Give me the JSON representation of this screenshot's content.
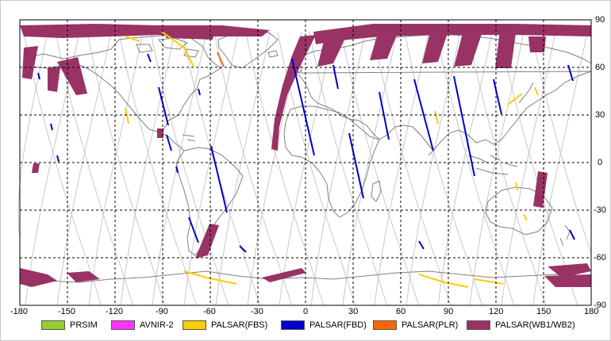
{
  "map": {
    "lon_ticks": [
      "-180",
      "-150",
      "-120",
      "-90",
      "-60",
      "-30",
      "0",
      "30",
      "60",
      "90",
      "120",
      "150",
      "180"
    ],
    "lat_ticks": [
      "90",
      "60",
      "30",
      "0",
      "-30",
      "-60",
      "-90"
    ],
    "grid": "dashed",
    "background": "#ffffff",
    "coastline_color": "#808080",
    "orbit_color": "#c8c8c8"
  },
  "legend": [
    {
      "label": "PRSIM",
      "color": "#99cc33"
    },
    {
      "label": "AVNIR-2",
      "color": "#ff33ff"
    },
    {
      "label": "PALSAR(FBS)",
      "color": "#ffcc00"
    },
    {
      "label": "PALSAR(FBD)",
      "color": "#0000cc"
    },
    {
      "label": "PALSAR(PLR)",
      "color": "#ff6600"
    },
    {
      "label": "PALSAR(WB1/WB2)",
      "color": "#993366"
    }
  ]
}
